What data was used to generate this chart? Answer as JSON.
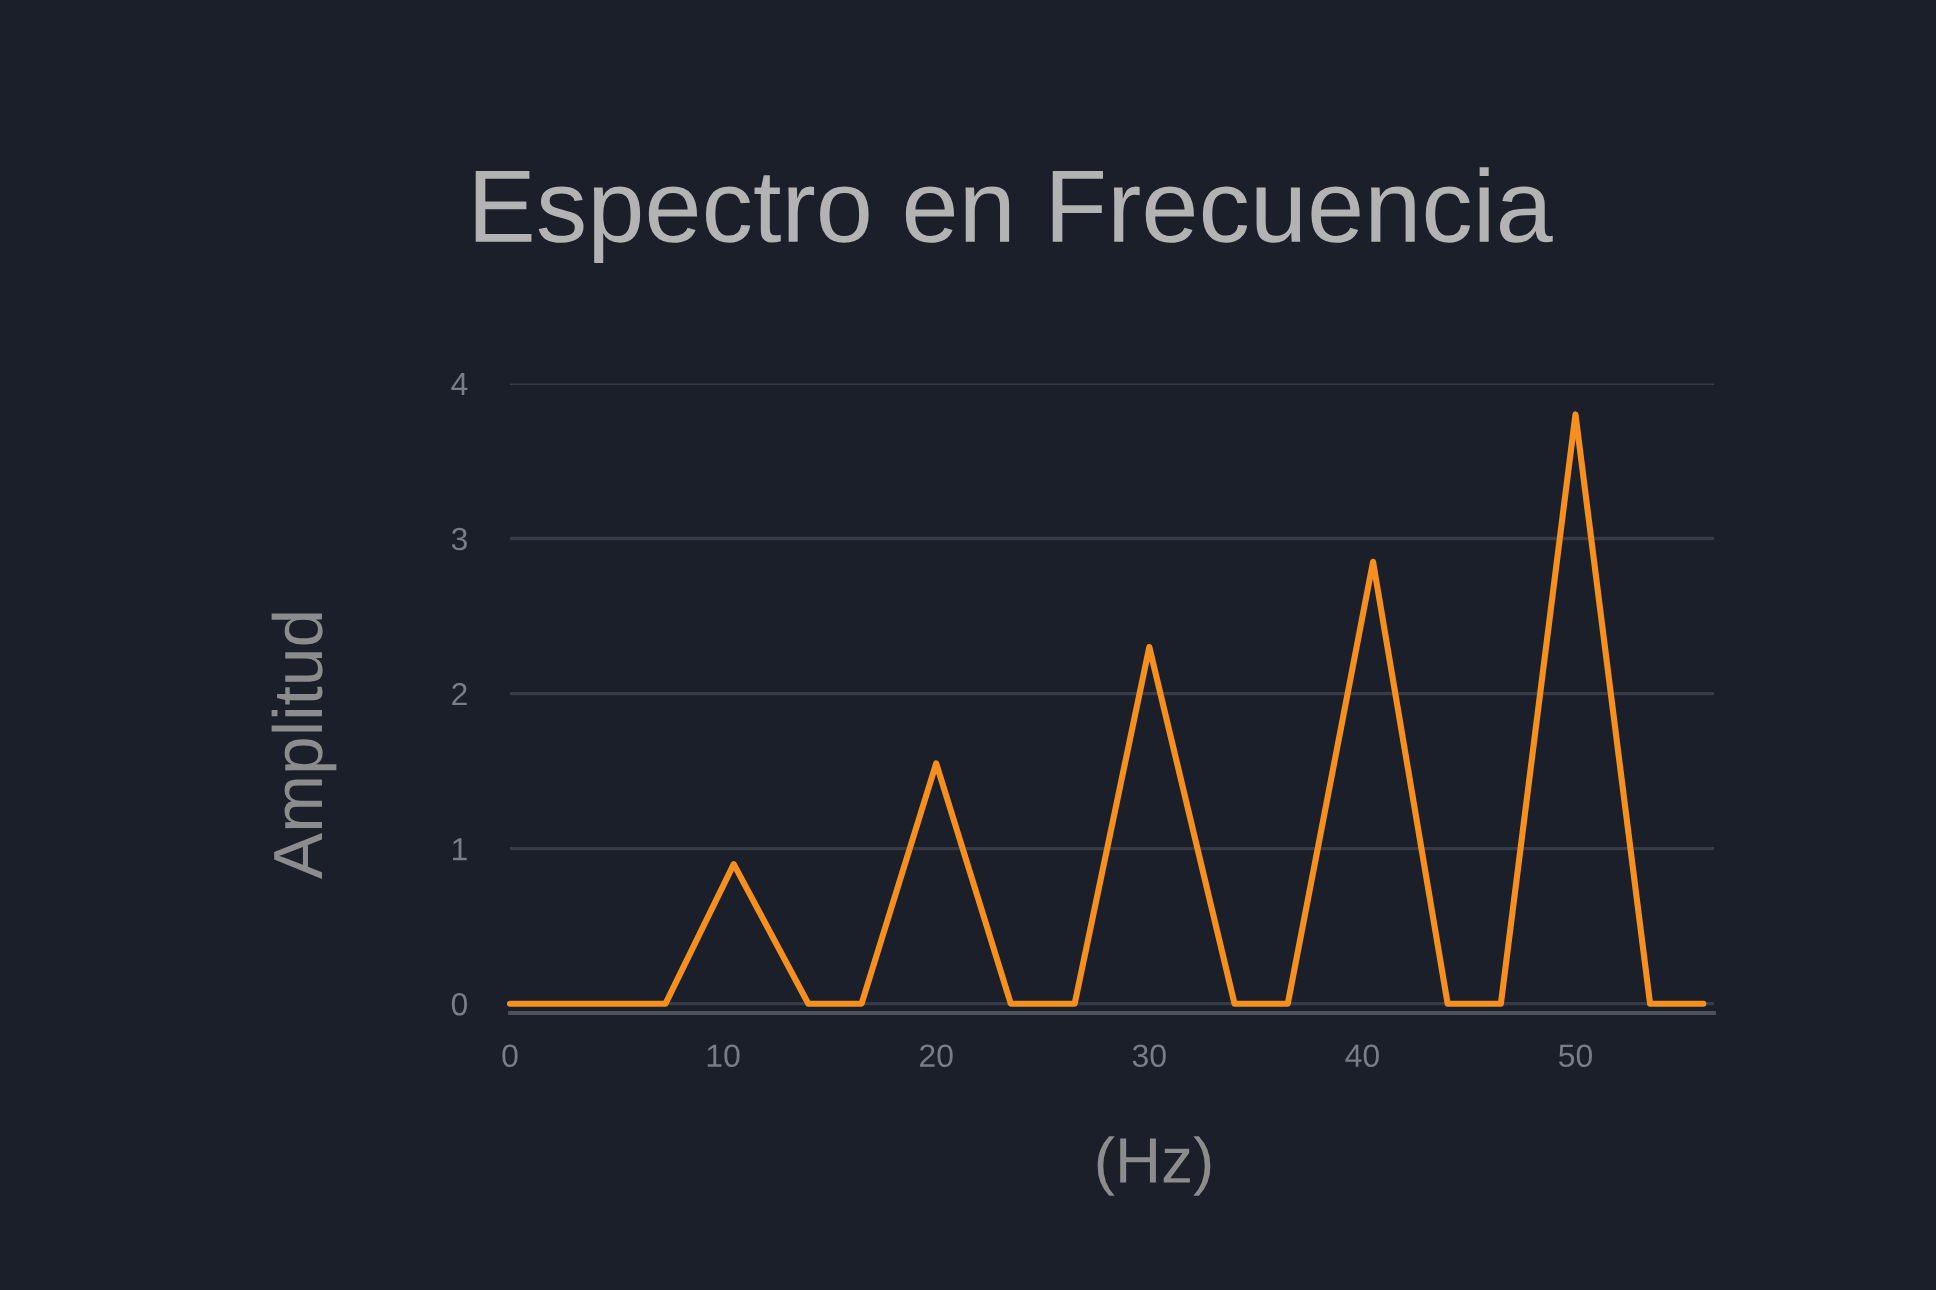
{
  "chart_data": {
    "type": "line",
    "title": "Espectro en Frecuencia",
    "xlabel": "(Hz)",
    "ylabel": "Amplitud",
    "x": [
      0,
      7.3,
      10.5,
      14,
      16.5,
      20,
      23.5,
      26.5,
      30,
      34,
      36.5,
      40.5,
      44,
      46.5,
      50,
      53.5,
      56
    ],
    "series": [
      {
        "color": "#f5901f",
        "values": [
          0,
          0,
          0.9,
          0,
          0,
          1.55,
          0,
          0,
          2.3,
          0,
          0,
          2.85,
          0,
          0,
          3.8,
          0,
          0
        ]
      }
    ],
    "xlim": [
      0,
      56.5
    ],
    "ylim": [
      -0.06,
      4
    ],
    "xticks": [
      0,
      10,
      20,
      30,
      40,
      50
    ],
    "yticks": [
      0,
      1,
      2,
      3,
      4
    ],
    "grid": "y",
    "line_style": "solid"
  }
}
